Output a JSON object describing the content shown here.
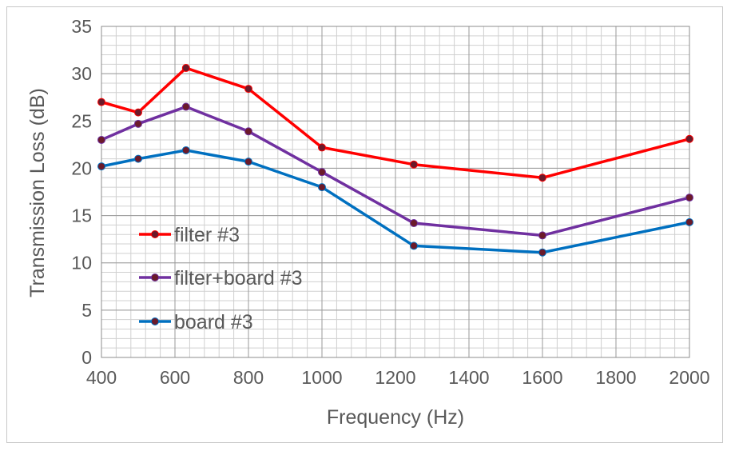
{
  "chart_data": {
    "type": "line",
    "title": "",
    "xlabel": "Frequency (Hz)",
    "ylabel": "Transmission Loss (dB)",
    "xlim": [
      400,
      2000
    ],
    "ylim": [
      0,
      35
    ],
    "x_ticks": [
      400,
      600,
      800,
      1000,
      1200,
      1400,
      1600,
      1800,
      2000
    ],
    "y_ticks": [
      0,
      5,
      10,
      15,
      20,
      25,
      30,
      35
    ],
    "x_tick_labels": [
      "400",
      "600",
      "800",
      "1000",
      "1200",
      "1400",
      "1600",
      "1800",
      "2000"
    ],
    "y_tick_labels": [
      "0",
      "5",
      "10",
      "15",
      "20",
      "25",
      "30",
      "35"
    ],
    "grid": true,
    "legend_position": "center-left",
    "series": [
      {
        "name": "filter #3",
        "color": "#ff0000",
        "x": [
          400,
          500,
          630,
          800,
          1000,
          1250,
          1600,
          2000
        ],
        "y": [
          27.0,
          25.9,
          30.6,
          28.4,
          22.2,
          20.4,
          19.0,
          23.1
        ]
      },
      {
        "name": "filter+board #3",
        "color": "#7030a0",
        "x": [
          400,
          500,
          630,
          800,
          1000,
          1250,
          1600,
          2000
        ],
        "y": [
          23.0,
          24.7,
          26.5,
          23.9,
          19.6,
          14.2,
          12.9,
          16.9
        ]
      },
      {
        "name": "board #3",
        "color": "#0070c0",
        "x": [
          400,
          500,
          630,
          800,
          1000,
          1250,
          1600,
          2000
        ],
        "y": [
          20.2,
          21.0,
          21.9,
          20.7,
          18.0,
          11.8,
          11.1,
          14.3
        ]
      }
    ]
  }
}
